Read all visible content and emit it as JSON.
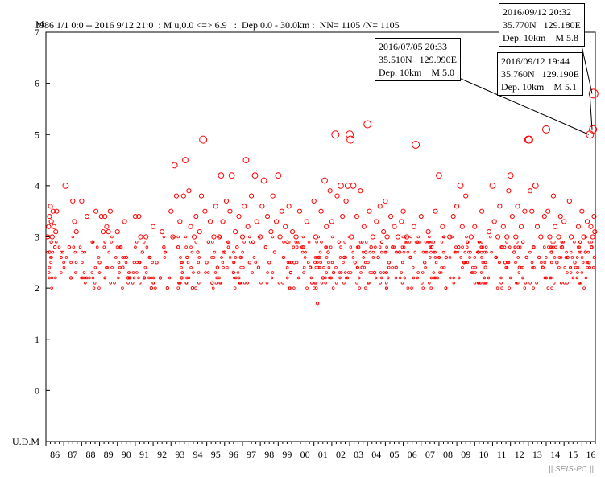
{
  "header": {
    "mag_label": "M",
    "text": "1986 1/1 0:0 -- 2016 9/12 21:0  : M u,0.0 <=> 6.9   :  Dep 0.0 - 30.0km :  NN= 1105 /N= 1105"
  },
  "callouts": [
    {
      "date": "2016/09/12 20:32",
      "coord": "35.770N   129.180E",
      "depth": "Dep. 10km    M 5.8"
    },
    {
      "date": "2016/07/05 20:33",
      "coord": "35.510N   129.990E",
      "depth": "Dep. 10km    M 5.0"
    },
    {
      "date": "2016/09/12 19:44",
      "coord": "35.760N   129.190E",
      "depth": "Dep. 10km    M 5.1"
    }
  ],
  "watermark": "|| SEIS-PC ||",
  "chart_data": {
    "type": "scatter",
    "xlabel": "",
    "ylabel": "M",
    "udm_label": "U.D.M",
    "xlim": [
      1986,
      2016.75
    ],
    "ylim": [
      -1,
      7
    ],
    "y_ticks": [
      "0",
      "1",
      "2",
      "3",
      "4",
      "5",
      "6",
      "7"
    ],
    "x_ticks": [
      "86",
      "87",
      "88",
      "89",
      "90",
      "91",
      "92",
      "93",
      "94",
      "95",
      "96",
      "97",
      "98",
      "99",
      "00",
      "01",
      "02",
      "03",
      "04",
      "05",
      "06",
      "07",
      "08",
      "09",
      "10",
      "11",
      "12",
      "13",
      "14",
      "15",
      "16"
    ],
    "marker_color": "#ff0000",
    "note": "",
    "points": [
      [
        1986.1,
        3.0
      ],
      [
        1986.15,
        3.2
      ],
      [
        1986.2,
        3.4
      ],
      [
        1986.25,
        3.6
      ],
      [
        1986.3,
        3.3
      ],
      [
        1986.35,
        3.0
      ],
      [
        1986.4,
        3.5
      ],
      [
        1986.45,
        3.2
      ],
      [
        1986.5,
        2.8
      ],
      [
        1986.55,
        3.1
      ],
      [
        1986.6,
        3.5
      ],
      [
        1986.2,
        2.7
      ],
      [
        1986.3,
        2.9
      ],
      [
        1987.1,
        4.0
      ],
      [
        1987.4,
        2.2
      ],
      [
        1987.5,
        3.7
      ],
      [
        1987.6,
        3.3
      ],
      [
        1987.7,
        3.1
      ],
      [
        1987.3,
        2.8
      ],
      [
        1988.0,
        3.7
      ],
      [
        1988.3,
        3.4
      ],
      [
        1988.6,
        2.9
      ],
      [
        1988.8,
        3.5
      ],
      [
        1989.1,
        3.4
      ],
      [
        1989.2,
        3.1
      ],
      [
        1989.3,
        3.4
      ],
      [
        1989.4,
        3.2
      ],
      [
        1989.5,
        3.1
      ],
      [
        1989.6,
        3.5
      ],
      [
        1989.0,
        2.5
      ],
      [
        1990.0,
        3.1
      ],
      [
        1990.2,
        2.8
      ],
      [
        1990.3,
        2.4
      ],
      [
        1990.4,
        3.3
      ],
      [
        1990.5,
        2.6
      ],
      [
        1990.6,
        2.2
      ],
      [
        1991.0,
        3.4
      ],
      [
        1991.2,
        3.4
      ],
      [
        1991.3,
        3.0
      ],
      [
        1991.4,
        2.7
      ],
      [
        1991.5,
        2.2
      ],
      [
        1991.6,
        3.0
      ],
      [
        1991.8,
        2.6
      ],
      [
        1991.9,
        2.0
      ],
      [
        1992.0,
        3.2
      ],
      [
        1992.2,
        2.5
      ],
      [
        1992.4,
        2.2
      ],
      [
        1992.5,
        3.1
      ],
      [
        1992.6,
        2.8
      ],
      [
        1992.8,
        2.0
      ],
      [
        1993.0,
        3.5
      ],
      [
        1993.1,
        3.0
      ],
      [
        1993.2,
        4.4
      ],
      [
        1993.3,
        3.8
      ],
      [
        1993.4,
        2.8
      ],
      [
        1993.5,
        3.3
      ],
      [
        1993.6,
        2.2
      ],
      [
        1993.7,
        3.8
      ],
      [
        1993.8,
        4.5
      ],
      [
        1993.9,
        2.6
      ],
      [
        1994.0,
        3.9
      ],
      [
        1994.1,
        3.2
      ],
      [
        1994.2,
        2.0
      ],
      [
        1994.3,
        3.0
      ],
      [
        1994.4,
        3.4
      ],
      [
        1994.5,
        2.7
      ],
      [
        1994.6,
        3.1
      ],
      [
        1994.7,
        3.8
      ],
      [
        1994.8,
        4.9
      ],
      [
        1994.9,
        3.5
      ],
      [
        1995.0,
        2.5
      ],
      [
        1995.1,
        2.9
      ],
      [
        1995.2,
        3.3
      ],
      [
        1995.3,
        2.1
      ],
      [
        1995.4,
        3.0
      ],
      [
        1995.5,
        3.6
      ],
      [
        1995.6,
        2.4
      ],
      [
        1995.7,
        3.0
      ],
      [
        1995.8,
        4.2
      ],
      [
        1995.9,
        3.3
      ],
      [
        1996.0,
        2.7
      ],
      [
        1996.1,
        3.7
      ],
      [
        1996.2,
        2.9
      ],
      [
        1996.3,
        3.5
      ],
      [
        1996.4,
        4.2
      ],
      [
        1996.5,
        2.3
      ],
      [
        1996.6,
        3.1
      ],
      [
        1996.7,
        2.8
      ],
      [
        1996.8,
        3.4
      ],
      [
        1996.9,
        2.6
      ],
      [
        1997.0,
        3.0
      ],
      [
        1997.1,
        3.6
      ],
      [
        1997.2,
        4.5
      ],
      [
        1997.3,
        3.2
      ],
      [
        1997.4,
        2.5
      ],
      [
        1997.5,
        3.8
      ],
      [
        1997.6,
        2.9
      ],
      [
        1997.7,
        4.2
      ],
      [
        1997.8,
        3.3
      ],
      [
        1997.9,
        2.4
      ],
      [
        1998.0,
        3.0
      ],
      [
        1998.1,
        3.6
      ],
      [
        1998.2,
        4.1
      ],
      [
        1998.3,
        2.8
      ],
      [
        1998.4,
        3.4
      ],
      [
        1998.5,
        2.5
      ],
      [
        1998.6,
        3.1
      ],
      [
        1998.7,
        3.8
      ],
      [
        1998.8,
        2.7
      ],
      [
        1998.9,
        3.3
      ],
      [
        1999.0,
        4.2
      ],
      [
        1999.1,
        3.0
      ],
      [
        1999.2,
        3.5
      ],
      [
        1999.3,
        2.6
      ],
      [
        1999.4,
        3.2
      ],
      [
        1999.5,
        2.9
      ],
      [
        1999.6,
        3.6
      ],
      [
        1999.7,
        2.3
      ],
      [
        1999.8,
        3.1
      ],
      [
        1999.9,
        2.5
      ],
      [
        2000.0,
        3.0
      ],
      [
        2000.2,
        3.5
      ],
      [
        2000.4,
        2.8
      ],
      [
        2000.6,
        3.3
      ],
      [
        2000.8,
        2.4
      ],
      [
        2001.0,
        3.7
      ],
      [
        2001.1,
        3.0
      ],
      [
        2001.2,
        1.7
      ],
      [
        2001.3,
        2.6
      ],
      [
        2001.4,
        3.5
      ],
      [
        2001.5,
        2.2
      ],
      [
        2001.6,
        4.1
      ],
      [
        2001.7,
        3.2
      ],
      [
        2001.8,
        2.7
      ],
      [
        2001.9,
        3.9
      ],
      [
        2002.0,
        3.3
      ],
      [
        2002.1,
        2.3
      ],
      [
        2002.2,
        5.0
      ],
      [
        2002.3,
        3.8
      ],
      [
        2002.4,
        2.9
      ],
      [
        2002.5,
        4.0
      ],
      [
        2002.6,
        3.4
      ],
      [
        2002.7,
        2.6
      ],
      [
        2002.8,
        3.7
      ],
      [
        2002.9,
        4.0
      ],
      [
        2003.0,
        5.0
      ],
      [
        2003.05,
        4.9
      ],
      [
        2003.1,
        3.0
      ],
      [
        2003.2,
        4.0
      ],
      [
        2003.3,
        2.5
      ],
      [
        2003.4,
        3.4
      ],
      [
        2003.5,
        2.8
      ],
      [
        2003.6,
        3.9
      ],
      [
        2003.7,
        2.4
      ],
      [
        2003.8,
        3.2
      ],
      [
        2003.9,
        2.7
      ],
      [
        2004.0,
        5.2
      ],
      [
        2004.1,
        3.5
      ],
      [
        2004.2,
        2.8
      ],
      [
        2004.3,
        3.0
      ],
      [
        2004.4,
        2.3
      ],
      [
        2004.5,
        3.3
      ],
      [
        2004.6,
        2.6
      ],
      [
        2004.7,
        3.6
      ],
      [
        2004.8,
        2.9
      ],
      [
        2004.9,
        3.1
      ],
      [
        2005.0,
        3.7
      ],
      [
        2005.1,
        3.0
      ],
      [
        2005.2,
        2.5
      ],
      [
        2005.3,
        3.4
      ],
      [
        2005.4,
        2.8
      ],
      [
        2005.5,
        3.2
      ],
      [
        2005.6,
        2.4
      ],
      [
        2005.7,
        3.0
      ],
      [
        2005.8,
        2.7
      ],
      [
        2005.9,
        3.3
      ],
      [
        2006.0,
        3.5
      ],
      [
        2006.2,
        3.0
      ],
      [
        2006.4,
        2.6
      ],
      [
        2006.6,
        3.2
      ],
      [
        2006.7,
        4.8
      ],
      [
        2006.8,
        2.9
      ],
      [
        2007.0,
        3.4
      ],
      [
        2007.2,
        2.5
      ],
      [
        2007.4,
        3.1
      ],
      [
        2007.6,
        2.8
      ],
      [
        2007.8,
        3.5
      ],
      [
        2008.0,
        4.2
      ],
      [
        2008.2,
        3.2
      ],
      [
        2008.4,
        2.6
      ],
      [
        2008.6,
        3.0
      ],
      [
        2008.8,
        3.4
      ],
      [
        2009.0,
        3.6
      ],
      [
        2009.1,
        2.8
      ],
      [
        2009.2,
        4.0
      ],
      [
        2009.3,
        3.2
      ],
      [
        2009.4,
        2.5
      ],
      [
        2009.5,
        3.8
      ],
      [
        2009.6,
        2.9
      ],
      [
        2009.8,
        3.0
      ],
      [
        2010.0,
        3.2
      ],
      [
        2010.2,
        2.7
      ],
      [
        2010.4,
        3.5
      ],
      [
        2010.6,
        2.4
      ],
      [
        2010.8,
        3.1
      ],
      [
        2011.0,
        4.0
      ],
      [
        2011.1,
        3.3
      ],
      [
        2011.2,
        2.6
      ],
      [
        2011.3,
        3.0
      ],
      [
        2011.4,
        3.6
      ],
      [
        2011.5,
        2.8
      ],
      [
        2011.6,
        3.2
      ],
      [
        2011.7,
        2.5
      ],
      [
        2011.8,
        3.0
      ],
      [
        2011.9,
        3.9
      ],
      [
        2012.0,
        4.2
      ],
      [
        2012.1,
        3.4
      ],
      [
        2012.2,
        2.7
      ],
      [
        2012.3,
        3.0
      ],
      [
        2012.4,
        3.6
      ],
      [
        2012.5,
        2.4
      ],
      [
        2012.6,
        3.2
      ],
      [
        2012.7,
        2.9
      ],
      [
        2012.8,
        3.5
      ],
      [
        2012.9,
        2.6
      ],
      [
        2013.0,
        4.9
      ],
      [
        2013.05,
        4.9
      ],
      [
        2013.1,
        3.9
      ],
      [
        2013.2,
        3.5
      ],
      [
        2013.3,
        2.8
      ],
      [
        2013.4,
        4.0
      ],
      [
        2013.5,
        3.2
      ],
      [
        2013.6,
        2.6
      ],
      [
        2013.7,
        3.0
      ],
      [
        2013.8,
        2.4
      ],
      [
        2013.9,
        3.4
      ],
      [
        2014.0,
        5.1
      ],
      [
        2014.1,
        3.5
      ],
      [
        2014.2,
        3.0
      ],
      [
        2014.3,
        2.7
      ],
      [
        2014.4,
        3.8
      ],
      [
        2014.5,
        3.2
      ],
      [
        2014.6,
        2.5
      ],
      [
        2014.7,
        3.0
      ],
      [
        2014.8,
        3.4
      ],
      [
        2014.9,
        2.8
      ],
      [
        2015.0,
        3.3
      ],
      [
        2015.2,
        2.6
      ],
      [
        2015.3,
        3.7
      ],
      [
        2015.4,
        3.0
      ],
      [
        2015.6,
        2.5
      ],
      [
        2015.8,
        3.2
      ],
      [
        2015.9,
        2.9
      ],
      [
        2016.0,
        3.5
      ],
      [
        2016.1,
        3.0
      ],
      [
        2016.2,
        2.7
      ],
      [
        2016.3,
        3.3
      ],
      [
        2016.4,
        2.5
      ],
      [
        2016.45,
        5.0
      ],
      [
        2016.5,
        3.2
      ],
      [
        2016.55,
        2.8
      ],
      [
        2016.6,
        3.0
      ],
      [
        2016.62,
        5.1
      ],
      [
        2016.65,
        5.8
      ],
      [
        2016.68,
        3.4
      ],
      [
        2016.7,
        2.6
      ],
      [
        2016.72,
        3.1
      ]
    ]
  }
}
